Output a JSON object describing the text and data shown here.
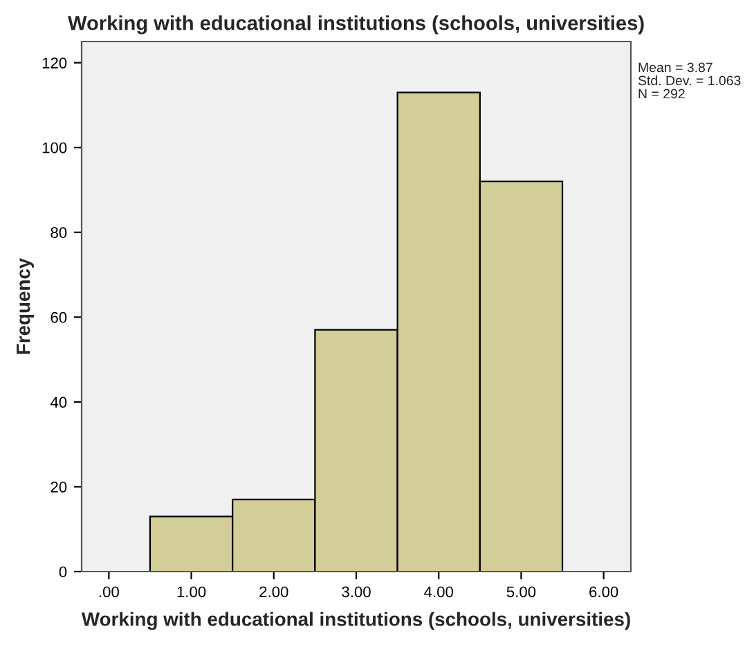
{
  "chart_data": {
    "type": "histogram",
    "title": "Working with educational institutions (schools, universities)",
    "xlabel": "Working with educational institutions (schools, universities)",
    "ylabel": "Frequency",
    "bins": [
      0.5,
      1.5,
      2.5,
      3.5,
      4.5,
      5.5
    ],
    "values": [
      13,
      17,
      57,
      113,
      92
    ],
    "color": "#d3ce97",
    "xlim": [
      -0.33,
      6.33
    ],
    "xticks": [
      {
        "value": 0,
        "label": ".00"
      },
      {
        "value": 1,
        "label": "1.00"
      },
      {
        "value": 2,
        "label": "2.00"
      },
      {
        "value": 3,
        "label": "3.00"
      },
      {
        "value": 4,
        "label": "4.00"
      },
      {
        "value": 5,
        "label": "5.00"
      },
      {
        "value": 6,
        "label": "6.00"
      }
    ],
    "ylim": [
      0,
      125
    ],
    "yticks": [
      0,
      20,
      40,
      60,
      80,
      100,
      120
    ],
    "grid": false,
    "annotations": [
      "Mean = 3.87",
      "Std. Dev. = 1.063",
      "N = 292"
    ]
  }
}
